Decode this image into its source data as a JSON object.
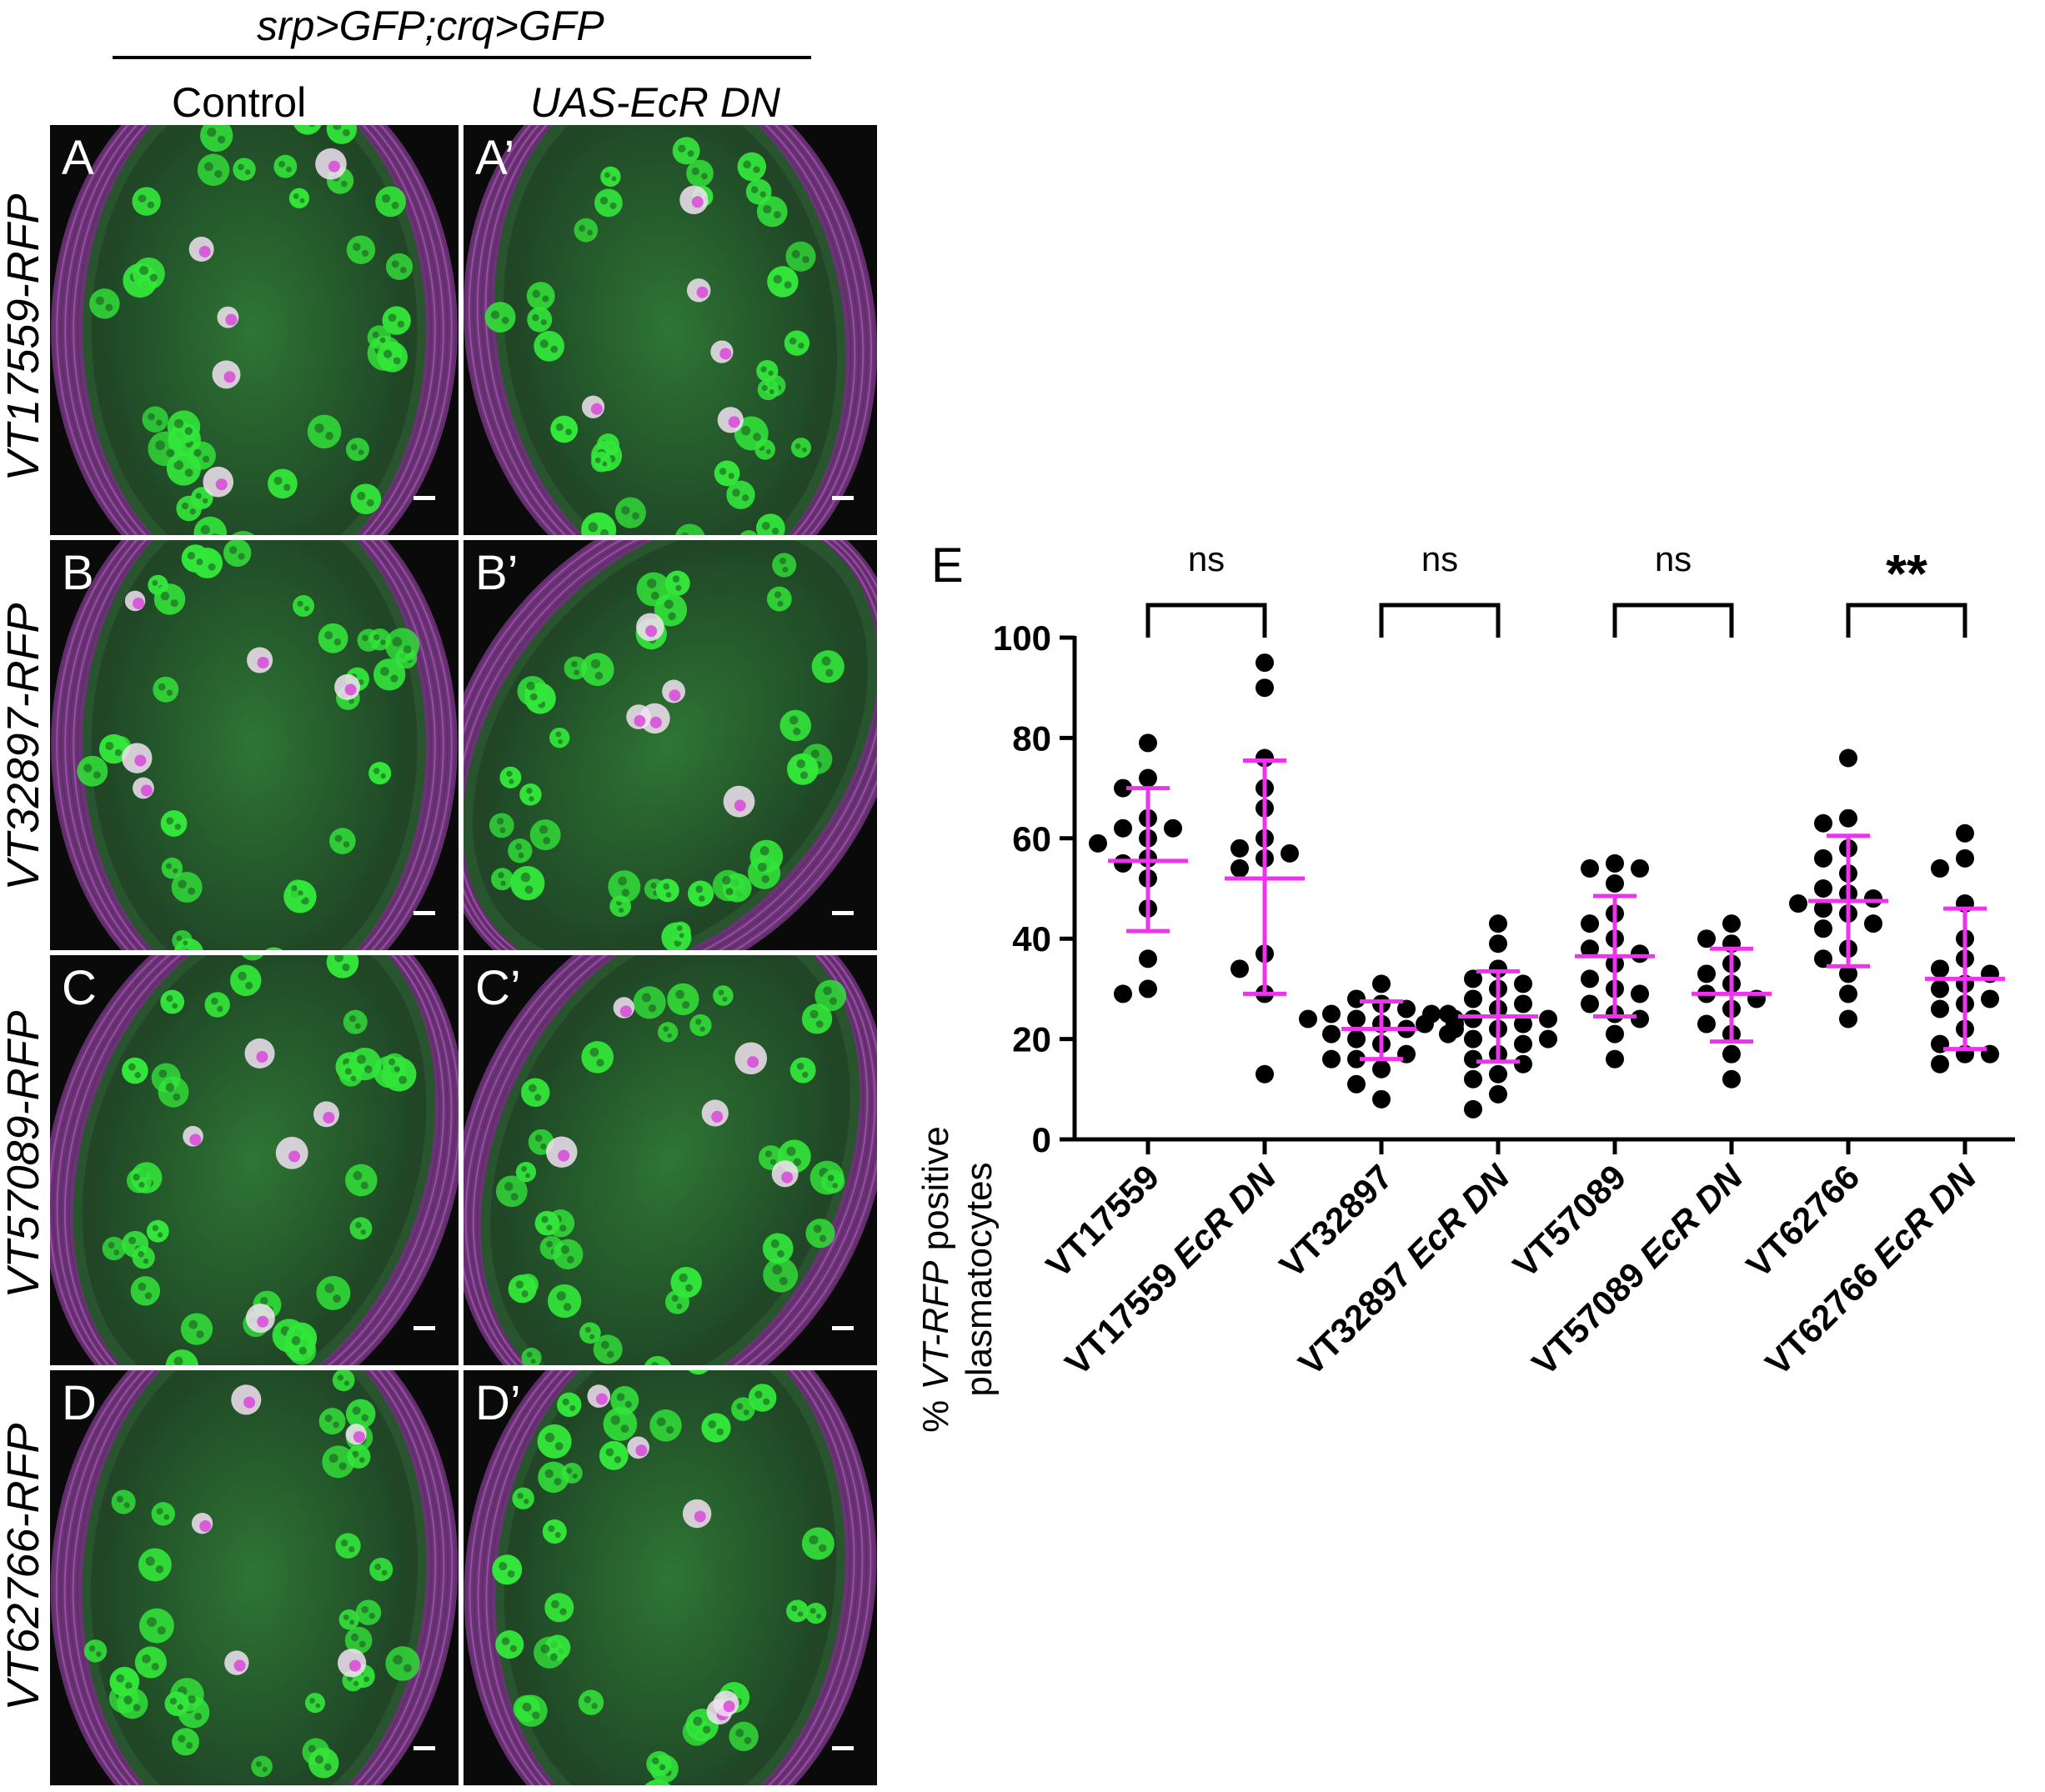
{
  "header": {
    "genotype": "srp>GFP;crq>GFP",
    "col_control": "Control",
    "col_treatment": "UAS-EcR DN"
  },
  "rows": [
    {
      "label": "VT17559-RFP",
      "left_panel": "A",
      "right_panel": "A’"
    },
    {
      "label": "VT32897-RFP",
      "left_panel": "B",
      "right_panel": "B’"
    },
    {
      "label": "VT57089-RFP",
      "left_panel": "C",
      "right_panel": "C’"
    },
    {
      "label": "VT62766-RFP",
      "left_panel": "D",
      "right_panel": "D’"
    }
  ],
  "colors": {
    "gfp": "#33e63a",
    "rfp": "#d93fd9",
    "error_bar": "#ee33ee",
    "points": "#000000"
  },
  "chart_data": {
    "type": "scatter",
    "panel_label": "E",
    "ylabel_prefix": "% ",
    "ylabel_italic": "VT-RFP",
    "ylabel_suffix": " positive",
    "ylabel_line2": "plasmatocytes",
    "ylim": [
      0,
      100
    ],
    "yticks": [
      0,
      20,
      40,
      60,
      80,
      100
    ],
    "categories": [
      {
        "name": "VT17559",
        "italic_suffix": ""
      },
      {
        "name": "VT17559 ",
        "italic_suffix": "EcR DN"
      },
      {
        "name": "VT32897",
        "italic_suffix": ""
      },
      {
        "name": "VT32897 ",
        "italic_suffix": "EcR DN"
      },
      {
        "name": "VT57089",
        "italic_suffix": ""
      },
      {
        "name": "VT57089 ",
        "italic_suffix": "EcR DN"
      },
      {
        "name": "VT62766",
        "italic_suffix": ""
      },
      {
        "name": "VT62766 ",
        "italic_suffix": "EcR DN"
      }
    ],
    "series": [
      {
        "mean": 55.5,
        "sd_low": 41.5,
        "sd_high": 70,
        "points": [
          79,
          72,
          70,
          64,
          62,
          62,
          60,
          59,
          56,
          55,
          52,
          46,
          36,
          30,
          29
        ]
      },
      {
        "mean": 52,
        "sd_low": 29,
        "sd_high": 75.5,
        "points": [
          95,
          90,
          76,
          70,
          66,
          60,
          58,
          57,
          56,
          54,
          37,
          34,
          29,
          13
        ]
      },
      {
        "mean": 22,
        "sd_low": 16,
        "sd_high": 27.5,
        "points": [
          31,
          28,
          27,
          26,
          25,
          25,
          24,
          24,
          24,
          23,
          23,
          22,
          22,
          21,
          20,
          19,
          17,
          16,
          16,
          14,
          11,
          8
        ]
      },
      {
        "mean": 24.5,
        "sd_low": 15.5,
        "sd_high": 33.5,
        "points": [
          43,
          39,
          34,
          32,
          31,
          30,
          28,
          27,
          26,
          25,
          24,
          24,
          23,
          23,
          22,
          21,
          20,
          20,
          19,
          17,
          16,
          15,
          13,
          12,
          9,
          6
        ]
      },
      {
        "mean": 36.5,
        "sd_low": 24.5,
        "sd_high": 48.5,
        "points": [
          55,
          54,
          54,
          51,
          45,
          43,
          40,
          38,
          37,
          35,
          32,
          30,
          29,
          27,
          25,
          24,
          21,
          16
        ]
      },
      {
        "mean": 29,
        "sd_low": 19.5,
        "sd_high": 38,
        "points": [
          40,
          43,
          39,
          35,
          33,
          31,
          29,
          28,
          26,
          23,
          21,
          17,
          12
        ]
      },
      {
        "mean": 47.5,
        "sd_low": 34.5,
        "sd_high": 60.5,
        "points": [
          76,
          64,
          63,
          58,
          56,
          53,
          50,
          49,
          48,
          47,
          46,
          45,
          43,
          42,
          38,
          36,
          33,
          29,
          24
        ]
      },
      {
        "mean": 32,
        "sd_low": 18,
        "sd_high": 46,
        "points": [
          61,
          56,
          54,
          47,
          40,
          36,
          34,
          33,
          31,
          30,
          28,
          27,
          26,
          22,
          19,
          17,
          17,
          15
        ]
      }
    ],
    "significance": [
      {
        "pair": [
          0,
          1
        ],
        "label": "ns"
      },
      {
        "pair": [
          2,
          3
        ],
        "label": "ns"
      },
      {
        "pair": [
          4,
          5
        ],
        "label": "ns"
      },
      {
        "pair": [
          6,
          7
        ],
        "label": "**"
      }
    ]
  }
}
